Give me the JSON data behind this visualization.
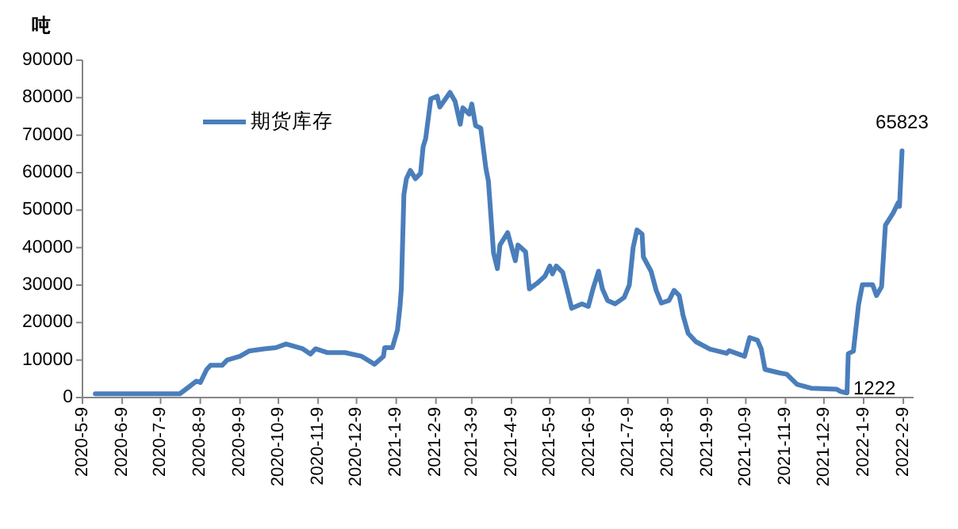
{
  "chart_data": {
    "type": "line",
    "ylabel": "吨",
    "legend": "top left",
    "grid": false,
    "marker": "none",
    "line_style": "solid",
    "xlim": [
      "2020-05-09",
      "2022-02-17"
    ],
    "ylim": [
      0,
      90000
    ],
    "yticks": [
      0,
      10000,
      20000,
      30000,
      40000,
      50000,
      60000,
      70000,
      80000,
      90000
    ],
    "xticks": [
      {
        "value": "2020-05-09",
        "label": "2020-5-9"
      },
      {
        "value": "2020-06-09",
        "label": "2020-6-9"
      },
      {
        "value": "2020-07-09",
        "label": "2020-7-9"
      },
      {
        "value": "2020-08-09",
        "label": "2020-8-9"
      },
      {
        "value": "2020-09-09",
        "label": "2020-9-9"
      },
      {
        "value": "2020-10-09",
        "label": "2020-10-9"
      },
      {
        "value": "2020-11-09",
        "label": "2020-11-9"
      },
      {
        "value": "2020-12-09",
        "label": "2020-12-9"
      },
      {
        "value": "2021-01-09",
        "label": "2021-1-9"
      },
      {
        "value": "2021-02-09",
        "label": "2021-2-9"
      },
      {
        "value": "2021-03-09",
        "label": "2021-3-9"
      },
      {
        "value": "2021-04-09",
        "label": "2021-4-9"
      },
      {
        "value": "2021-05-09",
        "label": "2021-5-9"
      },
      {
        "value": "2021-06-09",
        "label": "2021-6-9"
      },
      {
        "value": "2021-07-09",
        "label": "2021-7-9"
      },
      {
        "value": "2021-08-09",
        "label": "2021-8-9"
      },
      {
        "value": "2021-09-09",
        "label": "2021-9-9"
      },
      {
        "value": "2021-10-09",
        "label": "2021-10-9"
      },
      {
        "value": "2021-11-09",
        "label": "2021-11-9"
      },
      {
        "value": "2021-12-09",
        "label": "2021-12-9"
      },
      {
        "value": "2022-01-09",
        "label": "2022-1-9"
      },
      {
        "value": "2022-02-09",
        "label": "2022-2-9"
      }
    ],
    "annotations": [
      {
        "text": "65823",
        "x": "2022-02-08",
        "y": 65823
      },
      {
        "text": "1222",
        "x": "2021-12-27",
        "y": 1222
      }
    ],
    "series": [
      {
        "name": "期货库存",
        "color": "#4a7ebb",
        "x": [
          "2020-05-19",
          "2020-07-24",
          "2020-07-31",
          "2020-08-06",
          "2020-08-09",
          "2020-08-14",
          "2020-08-17",
          "2020-08-26",
          "2020-08-30",
          "2020-09-09",
          "2020-09-16",
          "2020-09-28",
          "2020-10-07",
          "2020-10-15",
          "2020-10-28",
          "2020-11-03",
          "2020-11-07",
          "2020-11-16",
          "2020-11-30",
          "2020-12-13",
          "2020-12-23",
          "2020-12-30",
          "2020-12-31",
          "2021-01-06",
          "2021-01-10",
          "2021-01-12",
          "2021-01-13",
          "2021-01-15",
          "2021-01-17",
          "2021-01-20",
          "2021-01-24",
          "2021-01-28",
          "2021-01-30",
          "2021-02-01",
          "2021-02-05",
          "2021-02-10",
          "2021-02-12",
          "2021-02-20",
          "2021-02-24",
          "2021-02-28",
          "2021-03-02",
          "2021-03-07",
          "2021-03-09",
          "2021-03-12",
          "2021-03-16",
          "2021-03-20",
          "2021-03-22",
          "2021-03-26",
          "2021-03-29",
          "2021-03-31",
          "2021-04-06",
          "2021-04-12",
          "2021-04-14",
          "2021-04-20",
          "2021-04-23",
          "2021-04-29",
          "2021-05-05",
          "2021-05-09",
          "2021-05-11",
          "2021-05-14",
          "2021-05-19",
          "2021-05-23",
          "2021-05-26",
          "2021-06-03",
          "2021-06-08",
          "2021-06-12",
          "2021-06-16",
          "2021-06-19",
          "2021-06-23",
          "2021-06-29",
          "2021-07-06",
          "2021-07-10",
          "2021-07-13",
          "2021-07-16",
          "2021-07-20",
          "2021-07-21",
          "2021-07-27",
          "2021-07-31",
          "2021-08-04",
          "2021-08-10",
          "2021-08-14",
          "2021-08-18",
          "2021-08-21",
          "2021-08-25",
          "2021-08-31",
          "2021-09-11",
          "2021-09-24",
          "2021-09-26",
          "2021-10-08",
          "2021-10-12",
          "2021-10-18",
          "2021-10-21",
          "2021-10-24",
          "2021-11-04",
          "2021-11-10",
          "2021-11-18",
          "2021-11-29",
          "2021-12-19",
          "2021-12-22",
          "2021-12-27",
          "2021-12-28",
          "2022-01-01",
          "2022-01-05",
          "2022-01-08",
          "2022-01-16",
          "2022-01-19",
          "2022-01-23",
          "2022-01-26",
          "2022-02-01",
          "2022-02-05",
          "2022-02-06",
          "2022-02-08"
        ],
        "values": [
          1000,
          1000,
          2800,
          4400,
          4000,
          7500,
          8600,
          8600,
          10000,
          11000,
          12400,
          13000,
          13300,
          14300,
          13000,
          11600,
          13000,
          12000,
          12000,
          11000,
          8900,
          11000,
          13300,
          13300,
          18100,
          24500,
          29000,
          54200,
          58400,
          60600,
          58400,
          59800,
          66900,
          69100,
          79700,
          80400,
          77500,
          81400,
          79000,
          72900,
          77300,
          75600,
          78300,
          72500,
          71900,
          61200,
          57700,
          38600,
          34400,
          40700,
          44000,
          36500,
          40700,
          38900,
          29000,
          30500,
          32300,
          35100,
          33000,
          35100,
          33400,
          28000,
          23800,
          25000,
          24300,
          29400,
          33700,
          29000,
          25900,
          25000,
          26700,
          30000,
          40000,
          44700,
          43600,
          37500,
          33700,
          28600,
          25200,
          25900,
          28600,
          27200,
          21900,
          17100,
          14900,
          12900,
          11800,
          12500,
          11000,
          16000,
          15300,
          13000,
          7500,
          6600,
          6200,
          3500,
          2500,
          2200,
          1600,
          1222,
          11700,
          12400,
          24700,
          30100,
          30100,
          27200,
          29600,
          46000,
          49200,
          52000,
          51000,
          65823
        ]
      }
    ]
  }
}
